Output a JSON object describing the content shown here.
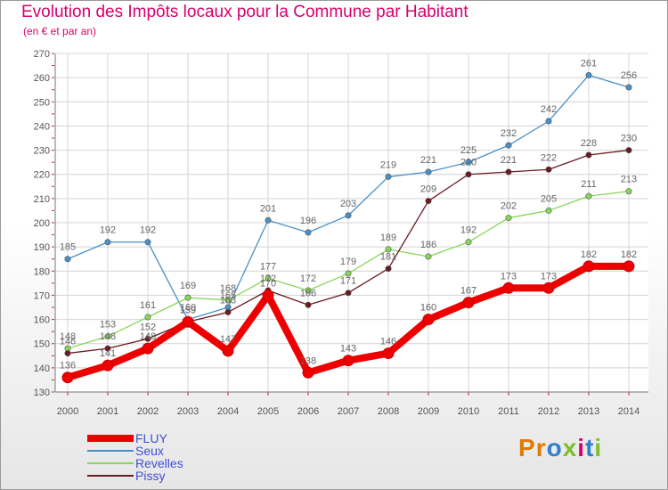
{
  "chart_data": {
    "type": "line",
    "title": "Evolution des Impôts locaux pour la Commune par Habitant",
    "subtitle": "(en € et par an)",
    "xlabel": "",
    "ylabel": "",
    "categories": [
      "2000",
      "2001",
      "2002",
      "2003",
      "2004",
      "2005",
      "2006",
      "2007",
      "2008",
      "2009",
      "2010",
      "2011",
      "2012",
      "2013",
      "2014"
    ],
    "ylim": [
      130,
      270
    ],
    "yticks": [
      130,
      140,
      150,
      160,
      170,
      180,
      190,
      200,
      210,
      220,
      230,
      240,
      250,
      260,
      270
    ],
    "grid": true,
    "legend_position": "bottom-left",
    "series": [
      {
        "name": "FLUY",
        "color": "#ee0000",
        "values": [
          136,
          141,
          148,
          159,
          147,
          170,
          138,
          143,
          146,
          160,
          167,
          173,
          173,
          182,
          182
        ]
      },
      {
        "name": "Seux",
        "color": "#4a90c8",
        "values": [
          185,
          192,
          192,
          160,
          165,
          201,
          196,
          203,
          219,
          221,
          225,
          232,
          242,
          261,
          256
        ]
      },
      {
        "name": "Revelles",
        "color": "#88d65a",
        "values": [
          148,
          153,
          161,
          169,
          168,
          177,
          172,
          179,
          189,
          186,
          192,
          202,
          205,
          211,
          213
        ]
      },
      {
        "name": "Pissy",
        "color": "#6a1a22",
        "values": [
          146,
          148,
          152,
          159,
          163,
          172,
          166,
          171,
          181,
          209,
          220,
          221,
          222,
          228,
          230
        ]
      }
    ]
  },
  "brand": {
    "letters": [
      "P",
      "r",
      "o",
      "x",
      "i",
      "t",
      "i"
    ]
  },
  "colors": {
    "title": "#d9006c",
    "legend_text": "#3d4fd8",
    "grid": "#d4d4d4",
    "axis": "#777777"
  }
}
